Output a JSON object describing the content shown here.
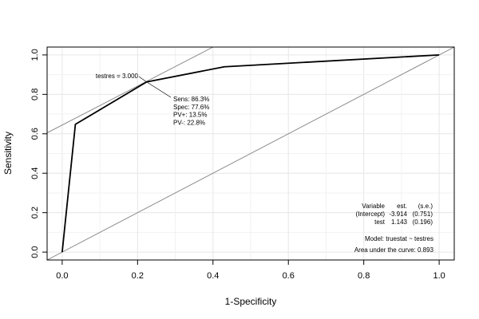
{
  "chart_data": {
    "type": "line",
    "xlabel": "1-Specificity",
    "ylabel": "Sensitivity",
    "xlim": [
      -0.04,
      1.04
    ],
    "ylim": [
      -0.04,
      1.04
    ],
    "x_ticks": [
      "0.0",
      "0.2",
      "0.4",
      "0.6",
      "0.8",
      "1.0"
    ],
    "y_ticks": [
      "0.0",
      "0.2",
      "0.4",
      "0.6",
      "0.8",
      "1.0"
    ],
    "grid": true,
    "series": [
      {
        "x": [
          0.0,
          0.035,
          0.224,
          0.43,
          1.0
        ],
        "y": [
          0.0,
          0.648,
          0.863,
          0.94,
          1.0
        ]
      }
    ],
    "reference_lines": [
      {
        "x": [
          -0.04,
          1.04
        ],
        "y": [
          -0.04,
          1.04
        ]
      },
      {
        "x": [
          -0.04,
          0.4
        ],
        "y": [
          0.605,
          1.04
        ]
      }
    ],
    "annotations": {
      "cutoff_label": "testres = 3.000",
      "cutoff_point": {
        "x": 0.224,
        "y": 0.863
      },
      "stats": [
        "Sens: 86.3%",
        "Spec: 77.6%",
        "PV+: 13.5%",
        "PV-: 22.8%"
      ],
      "model_table": {
        "header": [
          "Variable",
          "est.",
          "(s.e.)"
        ],
        "rows": [
          [
            "(Intercept)",
            "-3.914",
            "(0.751)"
          ],
          [
            "test",
            "1.143",
            "(0.196)"
          ]
        ]
      },
      "model_formula": "Model: truestat ~ testres",
      "auc": "Area under the curve: 0.893"
    }
  }
}
